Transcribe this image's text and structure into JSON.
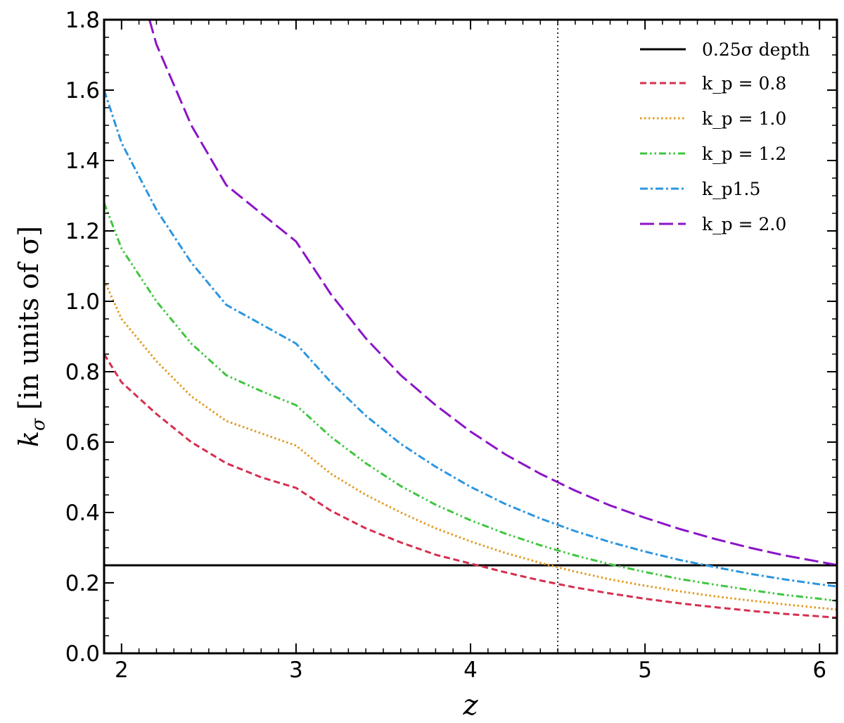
{
  "chart_data": {
    "type": "line",
    "xlabel": "z",
    "ylabel": "k_σ [in units of σ]",
    "xlim": [
      1.9,
      6.1
    ],
    "ylim": [
      0.0,
      1.8
    ],
    "x_ticks": [
      2,
      3,
      4,
      5,
      6
    ],
    "y_ticks": [
      0.0,
      0.2,
      0.4,
      0.6,
      0.8,
      1.0,
      1.2,
      1.4,
      1.6,
      1.8
    ],
    "x_tick_labels": [
      "2",
      "3",
      "4",
      "5",
      "6"
    ],
    "y_tick_labels": [
      "0.0",
      "0.2",
      "0.4",
      "0.6",
      "0.8",
      "1.0",
      "1.2",
      "1.4",
      "1.6",
      "1.8"
    ],
    "grid": false,
    "legend_position": "top-right",
    "vertical_line": {
      "x": 4.5,
      "style": "dotted",
      "color": "#000000"
    },
    "series": [
      {
        "name": "0.25σ depth",
        "color": "#000000",
        "style": "solid",
        "x": [
          1.9,
          6.1
        ],
        "y": [
          0.25,
          0.25
        ]
      },
      {
        "name": "k_p = 0.8",
        "color": "#d62f4f",
        "style": "dashed",
        "x": [
          1.9,
          2.0,
          2.2,
          2.4,
          2.6,
          2.8,
          3.0,
          3.2,
          3.4,
          3.6,
          3.8,
          4.0,
          4.2,
          4.4,
          4.6,
          4.8,
          5.0,
          5.2,
          5.4,
          5.6,
          5.8,
          6.0,
          6.1
        ],
        "y": [
          0.85,
          0.77,
          0.68,
          0.6,
          0.54,
          0.5,
          0.47,
          0.405,
          0.355,
          0.315,
          0.28,
          0.255,
          0.23,
          0.207,
          0.187,
          0.17,
          0.155,
          0.142,
          0.131,
          0.121,
          0.112,
          0.105,
          0.101
        ]
      },
      {
        "name": "k_p = 1.0",
        "color": "#e39b22",
        "style": "dotted",
        "x": [
          1.9,
          2.0,
          2.2,
          2.4,
          2.6,
          2.8,
          3.0,
          3.2,
          3.4,
          3.6,
          3.8,
          4.0,
          4.2,
          4.4,
          4.6,
          4.8,
          5.0,
          5.2,
          5.4,
          5.6,
          5.8,
          6.0,
          6.1
        ],
        "y": [
          1.06,
          0.95,
          0.83,
          0.73,
          0.66,
          0.625,
          0.59,
          0.51,
          0.45,
          0.4,
          0.355,
          0.318,
          0.285,
          0.257,
          0.232,
          0.21,
          0.192,
          0.176,
          0.162,
          0.15,
          0.139,
          0.129,
          0.124
        ]
      },
      {
        "name": "k_p = 1.2",
        "color": "#3ec63e",
        "style": "dashdotdot",
        "x": [
          1.9,
          2.0,
          2.2,
          2.4,
          2.6,
          2.8,
          3.0,
          3.2,
          3.4,
          3.6,
          3.8,
          4.0,
          4.2,
          4.4,
          4.6,
          4.8,
          5.0,
          5.2,
          5.4,
          5.6,
          5.8,
          6.0,
          6.1
        ],
        "y": [
          1.28,
          1.15,
          1.0,
          0.88,
          0.79,
          0.745,
          0.705,
          0.615,
          0.54,
          0.475,
          0.422,
          0.378,
          0.34,
          0.307,
          0.278,
          0.253,
          0.231,
          0.211,
          0.195,
          0.18,
          0.166,
          0.155,
          0.149
        ]
      },
      {
        "name": "k_p1.5",
        "color": "#2b96e0",
        "style": "dashdot",
        "x": [
          1.9,
          2.0,
          2.2,
          2.4,
          2.6,
          2.8,
          3.0,
          3.2,
          3.4,
          3.6,
          3.8,
          4.0,
          4.2,
          4.4,
          4.6,
          4.8,
          5.0,
          5.2,
          5.4,
          5.6,
          5.8,
          6.0,
          6.1
        ],
        "y": [
          1.6,
          1.45,
          1.26,
          1.11,
          0.99,
          0.935,
          0.88,
          0.77,
          0.675,
          0.595,
          0.53,
          0.473,
          0.424,
          0.383,
          0.347,
          0.316,
          0.289,
          0.265,
          0.245,
          0.226,
          0.21,
          0.196,
          0.19
        ]
      },
      {
        "name": "k_p = 2.0",
        "color": "#8b14c8",
        "style": "longdash",
        "x": [
          2.16,
          2.2,
          2.4,
          2.6,
          2.8,
          3.0,
          3.2,
          3.4,
          3.6,
          3.8,
          4.0,
          4.2,
          4.4,
          4.6,
          4.8,
          5.0,
          5.2,
          5.4,
          5.6,
          5.8,
          6.0,
          6.1
        ],
        "y": [
          1.8,
          1.73,
          1.5,
          1.33,
          1.25,
          1.17,
          1.02,
          0.895,
          0.79,
          0.705,
          0.63,
          0.565,
          0.51,
          0.462,
          0.42,
          0.385,
          0.353,
          0.325,
          0.3,
          0.278,
          0.26,
          0.251
        ]
      }
    ]
  },
  "legend_labels": {
    "depth": "0.25σ depth",
    "kp08": "k_p = 0.8",
    "kp10": "k_p = 1.0",
    "kp12": "k_p = 1.2",
    "kp15": "k_p1.5",
    "kp20": "k_p = 2.0"
  },
  "axis_text": {
    "x": "z",
    "y_main": "k",
    "y_sub": "σ",
    "y_rest": " [in units of σ]"
  }
}
